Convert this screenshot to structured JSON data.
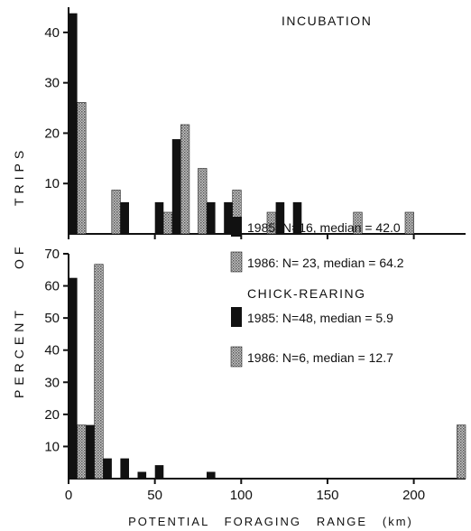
{
  "figure": {
    "ylabel_top": "TRIPS",
    "ylabel_mid": "OF",
    "ylabel_bottom": "PERCENT",
    "xlabel": "POTENTIAL   FORAGING   RANGE   (km)",
    "x_ticks": [
      "0",
      "50",
      "100",
      "150",
      "200"
    ],
    "colors": {
      "series_1985": "#111111",
      "series_1986": "#9a9a9a"
    }
  },
  "chart_data": [
    {
      "type": "bar",
      "title": "INCUBATION",
      "xlabel": "POTENTIAL FORAGING RANGE (km)",
      "ylabel": "PERCENT OF TRIPS",
      "xlim": [
        0,
        230
      ],
      "ylim": [
        0,
        45
      ],
      "y_ticks": [
        "10",
        "20",
        "30",
        "40"
      ],
      "bin_width_km": 5,
      "series": [
        {
          "name": "1985",
          "legend": "1985: N=16, median = 42.0",
          "fill": "solid",
          "bins": [
            {
              "x": 0,
              "value": 43.8
            },
            {
              "x": 30,
              "value": 6.3
            },
            {
              "x": 50,
              "value": 6.3
            },
            {
              "x": 60,
              "value": 18.8
            },
            {
              "x": 80,
              "value": 6.3
            },
            {
              "x": 90,
              "value": 6.3
            },
            {
              "x": 120,
              "value": 6.3
            },
            {
              "x": 130,
              "value": 6.3
            }
          ]
        },
        {
          "name": "1986",
          "legend": "1986: N= 23, median = 64.2",
          "fill": "stippled",
          "bins": [
            {
              "x": 5,
              "value": 26.1
            },
            {
              "x": 25,
              "value": 8.7
            },
            {
              "x": 55,
              "value": 4.3
            },
            {
              "x": 65,
              "value": 21.7
            },
            {
              "x": 75,
              "value": 13.0
            },
            {
              "x": 95,
              "value": 8.7
            },
            {
              "x": 115,
              "value": 4.3
            },
            {
              "x": 165,
              "value": 4.3
            },
            {
              "x": 195,
              "value": 4.3
            }
          ]
        }
      ]
    },
    {
      "type": "bar",
      "title": "CHICK-REARING",
      "xlabel": "POTENTIAL FORAGING RANGE (km)",
      "ylabel": "PERCENT OF TRIPS",
      "xlim": [
        0,
        230
      ],
      "ylim": [
        0,
        70
      ],
      "y_ticks": [
        "10",
        "20",
        "30",
        "40",
        "50",
        "60",
        "70"
      ],
      "bin_width_km": 5,
      "series": [
        {
          "name": "1985",
          "legend": "1985: N=48, median = 5.9",
          "fill": "solid",
          "bins": [
            {
              "x": 0,
              "value": 62.5
            },
            {
              "x": 10,
              "value": 16.7
            },
            {
              "x": 20,
              "value": 6.3
            },
            {
              "x": 30,
              "value": 6.3
            },
            {
              "x": 40,
              "value": 2.1
            },
            {
              "x": 50,
              "value": 4.2
            },
            {
              "x": 80,
              "value": 2.1
            }
          ]
        },
        {
          "name": "1986",
          "legend": "1986: N=6, median = 12.7",
          "fill": "stippled",
          "bins": [
            {
              "x": 5,
              "value": 16.7
            },
            {
              "x": 15,
              "value": 66.7
            },
            {
              "x": 225,
              "value": 16.7
            }
          ]
        }
      ]
    }
  ]
}
